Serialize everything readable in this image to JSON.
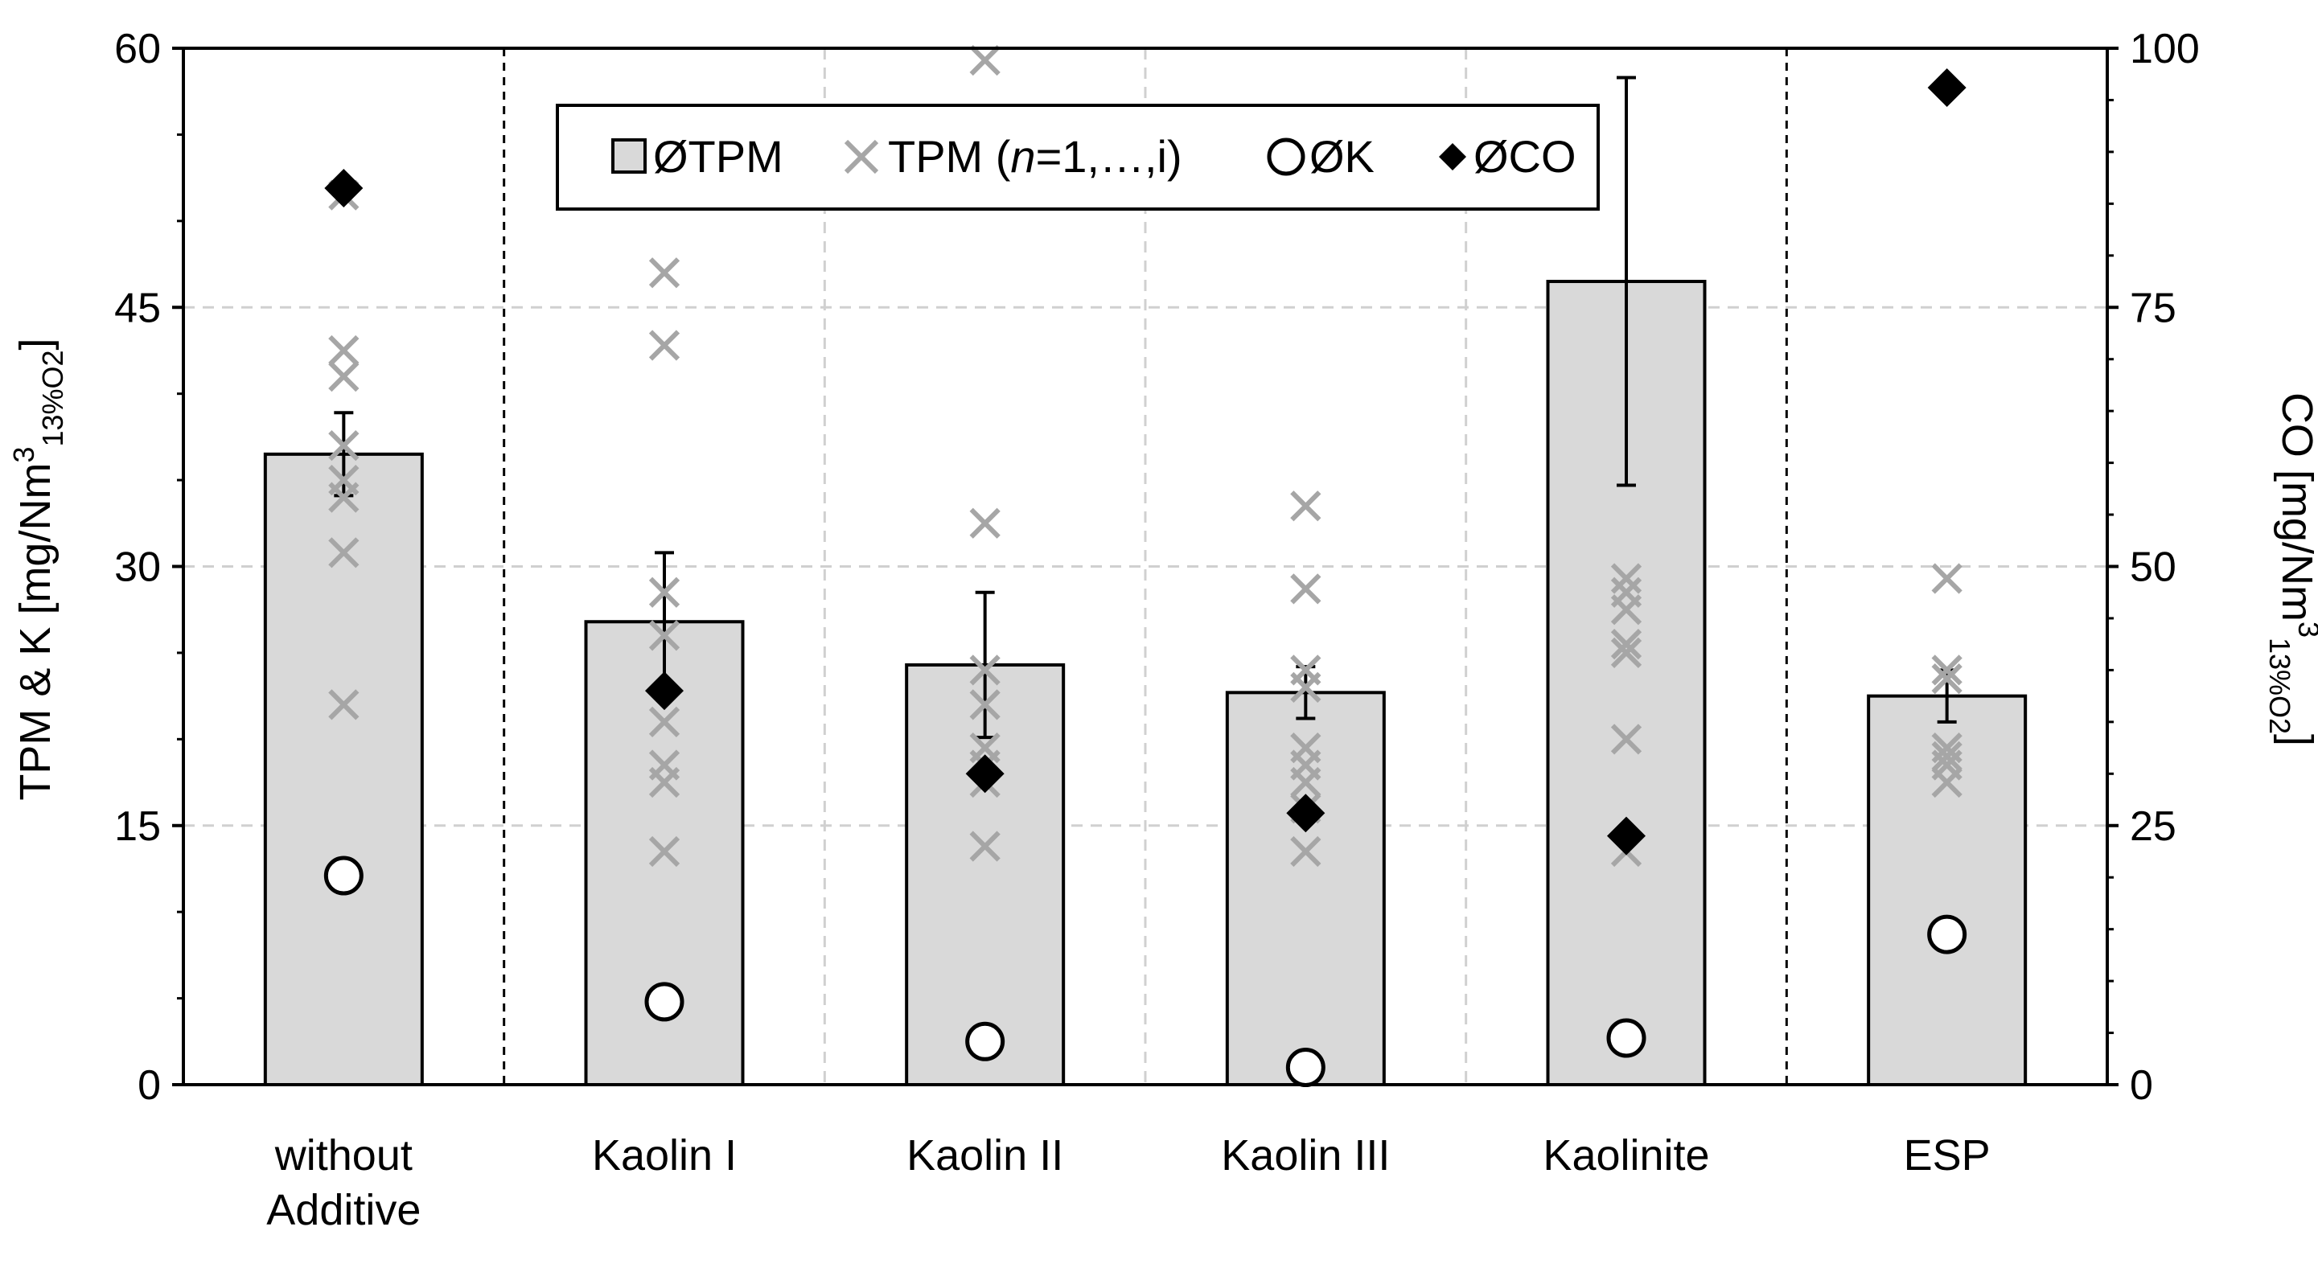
{
  "chart_data": {
    "type": "bar",
    "categories": [
      [
        "without",
        "Additive"
      ],
      [
        "Kaolin I"
      ],
      [
        "Kaolin II"
      ],
      [
        "Kaolin III"
      ],
      [
        "Kaolinite"
      ],
      [
        "ESP"
      ]
    ],
    "left_axis": {
      "title_main": "TPM & K [mg/Nm",
      "title_sup": "3",
      "title_sub": "13%O2",
      "title_end": "]",
      "ylim": [
        0,
        60
      ],
      "ticks": [
        0,
        15,
        30,
        45,
        60
      ],
      "tick_labels": [
        "0",
        "15",
        "30",
        "45",
        "60"
      ]
    },
    "right_axis": {
      "title_main": "CO [mg/Nm",
      "title_sup": "3",
      "title_sub": "13%O2",
      "title_end": "]",
      "ylim": [
        0,
        100
      ],
      "ticks": [
        0,
        25,
        50,
        75,
        100
      ],
      "tick_labels": [
        "0",
        "25",
        "50",
        "75",
        "100"
      ],
      "minor_step": 5
    },
    "legend": {
      "position": "top",
      "entries": [
        {
          "key": "tpm_mean",
          "label": "ØTPM"
        },
        {
          "key": "tpm_single",
          "label_pre": "TPM (",
          "label_ital": "n",
          "label_post": "=1,…,i)"
        },
        {
          "key": "k_mean",
          "label": "ØK"
        },
        {
          "key": "co_mean",
          "label": "ØCO"
        }
      ]
    },
    "series": [
      {
        "name": "ØTPM",
        "axis": "left",
        "kind": "bar",
        "values": [
          36.5,
          26.8,
          24.3,
          22.7,
          46.5,
          22.5
        ],
        "error": [
          2.4,
          4.0,
          4.2,
          1.5,
          11.8,
          1.5
        ],
        "color": "#d9d9d9"
      },
      {
        "name": "TPM (n=1,…,i)",
        "axis": "left",
        "kind": "scatter",
        "marker": "x",
        "color": "#a6a6a6",
        "values": [
          [
            51.5,
            42.5,
            41.0,
            37.0,
            35.0,
            34.0,
            30.8,
            22.0
          ],
          [
            47.0,
            42.8,
            28.5,
            26.0,
            21.0,
            18.5,
            17.5,
            13.5
          ],
          [
            59.3,
            32.5,
            24.0,
            22.0,
            19.5,
            18.5,
            17.5,
            13.8
          ],
          [
            33.5,
            28.7,
            24.0,
            23.0,
            19.5,
            18.5,
            17.5,
            16.0,
            13.5
          ],
          [
            29.3,
            28.5,
            27.5,
            25.5,
            25.0,
            20.0,
            13.5
          ],
          [
            29.3,
            24.0,
            23.5,
            19.5,
            19.0,
            18.5,
            17.5
          ]
        ]
      },
      {
        "name": "ØK",
        "axis": "left",
        "kind": "scatter",
        "marker": "circle",
        "values": [
          12.1,
          4.8,
          2.5,
          1.0,
          2.7,
          8.7
        ]
      },
      {
        "name": "ØCO",
        "axis": "right",
        "kind": "scatter",
        "marker": "diamond",
        "values": [
          86.5,
          38.0,
          30.0,
          26.2,
          24.0,
          96.2
        ]
      }
    ],
    "grid": true,
    "dividers_after_categories": [
      1,
      5
    ]
  }
}
